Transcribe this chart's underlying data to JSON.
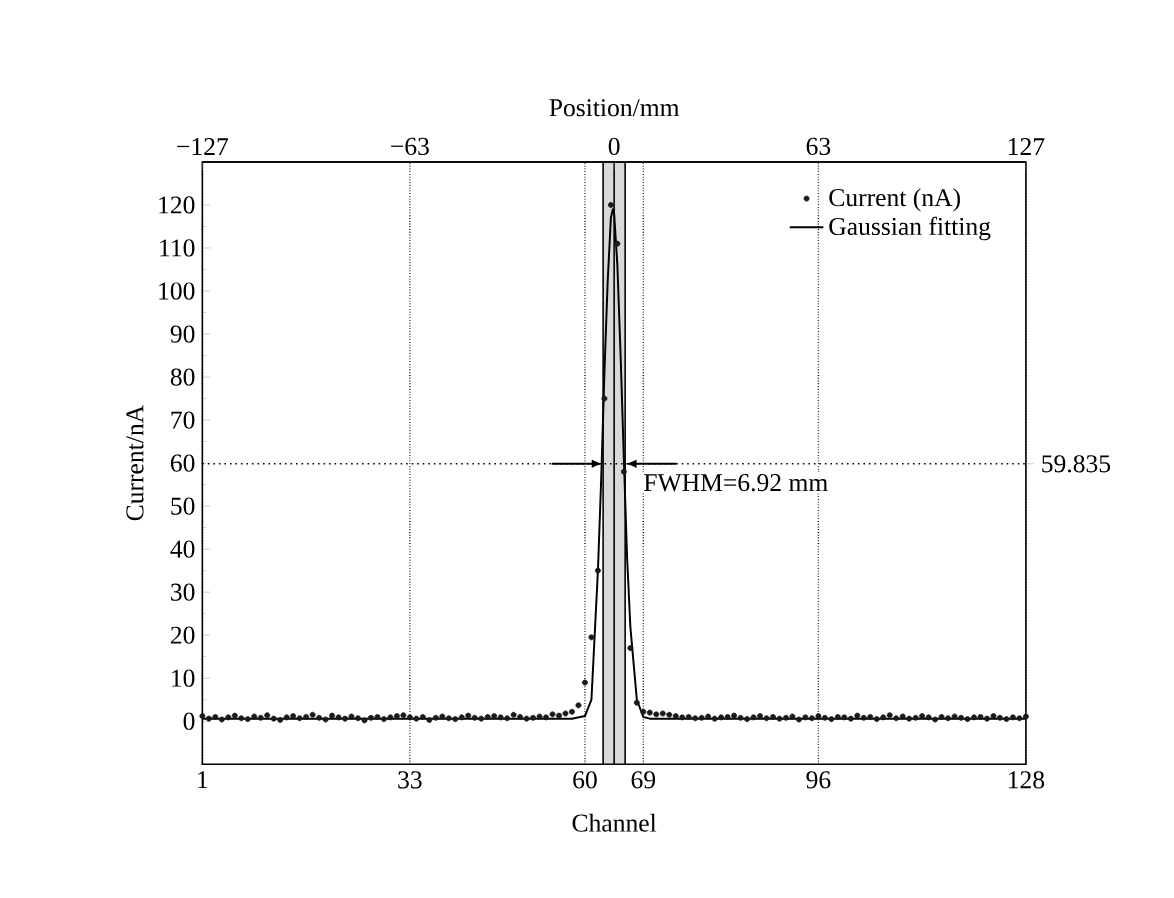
{
  "chart_data": {
    "type": "scatter",
    "xlabel": "Channel",
    "ylabel": "Current/nA",
    "x2label": "Position/mm",
    "x": [
      1,
      2,
      3,
      4,
      5,
      6,
      7,
      8,
      9,
      10,
      11,
      12,
      13,
      14,
      15,
      16,
      17,
      18,
      19,
      20,
      21,
      22,
      23,
      24,
      25,
      26,
      27,
      28,
      29,
      30,
      31,
      32,
      33,
      34,
      35,
      36,
      37,
      38,
      39,
      40,
      41,
      42,
      43,
      44,
      45,
      46,
      47,
      48,
      49,
      50,
      51,
      52,
      53,
      54,
      55,
      56,
      57,
      58,
      59,
      60,
      61,
      62,
      63,
      64,
      65,
      66,
      67,
      68,
      69,
      70,
      71,
      72,
      73,
      74,
      75,
      76,
      77,
      78,
      79,
      80,
      81,
      82,
      83,
      84,
      85,
      86,
      87,
      88,
      89,
      90,
      91,
      92,
      93,
      94,
      95,
      96,
      97,
      98,
      99,
      100,
      101,
      102,
      103,
      104,
      105,
      106,
      107,
      108,
      109,
      110,
      111,
      112,
      113,
      114,
      115,
      116,
      117,
      118,
      119,
      120,
      121,
      122,
      123,
      124,
      125,
      126,
      127,
      128
    ],
    "series": [
      {
        "name": "Current (nA)",
        "color": "#1a1a1a",
        "marker": "circle",
        "values": [
          1.2,
          0.6,
          1.0,
          0.4,
          0.9,
          1.3,
          0.7,
          0.5,
          1.1,
          0.8,
          1.4,
          0.6,
          0.3,
          0.9,
          1.2,
          0.7,
          1.0,
          1.5,
          0.8,
          0.4,
          1.3,
          0.9,
          0.6,
          1.1,
          0.7,
          0.2,
          0.8,
          1.0,
          0.5,
          0.9,
          1.2,
          1.4,
          0.9,
          0.6,
          1.0,
          0.3,
          0.8,
          1.1,
          0.7,
          0.5,
          0.9,
          1.3,
          0.8,
          0.6,
          1.0,
          1.2,
          0.9,
          0.7,
          1.5,
          1.0,
          0.6,
          0.8,
          1.1,
          0.9,
          1.6,
          1.3,
          1.8,
          2.2,
          3.7,
          9,
          19.5,
          35,
          75,
          120,
          111,
          58,
          17,
          4.3,
          2.2,
          2.0,
          1.6,
          1.8,
          1.5,
          1.2,
          0.9,
          1.0,
          0.7,
          0.8,
          1.1,
          0.6,
          0.9,
          1.0,
          1.3,
          0.8,
          0.5,
          0.9,
          1.2,
          0.7,
          1.0,
          0.6,
          0.8,
          1.1,
          0.4,
          0.9,
          0.7,
          1.2,
          0.8,
          0.5,
          1.0,
          0.9,
          0.6,
          1.3,
          0.8,
          1.0,
          0.5,
          0.9,
          1.4,
          0.7,
          1.1,
          0.6,
          0.8,
          1.2,
          0.9,
          0.4,
          1.0,
          0.7,
          1.1,
          0.8,
          0.5,
          0.9,
          1.0,
          0.6,
          1.2,
          0.8,
          0.5,
          0.9,
          0.7,
          1.1
        ]
      },
      {
        "name": "Gaussian fitting",
        "type": "line",
        "color": "#000000",
        "marker": "none",
        "line_style": "solid",
        "x": [
          1,
          58,
          60,
          61,
          62,
          62.5,
          63,
          63.5,
          64,
          64.3,
          64.5,
          65,
          65.5,
          66,
          66.5,
          67,
          68,
          69,
          70,
          128
        ],
        "values": [
          0.6,
          0.6,
          1.2,
          5,
          35,
          56,
          81,
          102,
          117,
          119,
          118,
          106,
          85,
          61,
          38,
          22,
          5,
          1,
          0.6,
          0.6
        ]
      }
    ],
    "xlim": [
      1,
      128
    ],
    "xticks": [
      1,
      33,
      60,
      69,
      96,
      128
    ],
    "x2lim": [
      -127,
      127
    ],
    "x2ticks": [
      {
        "value": -127,
        "label": "−127"
      },
      {
        "value": -63,
        "label": "−63"
      },
      0,
      63,
      127
    ],
    "ylim": [
      -10,
      130
    ],
    "yticks": [
      0,
      10,
      20,
      30,
      40,
      50,
      60,
      70,
      80,
      90,
      100,
      110,
      120
    ],
    "grid": "x",
    "legend": "top right",
    "ref_lines": [
      {
        "axis": "y",
        "value": 59.835,
        "label": "59.835",
        "line_style": "dotted"
      },
      {
        "axis": "x",
        "value": 64.5,
        "line_style": "solid"
      }
    ],
    "bands": [
      {
        "axis": "x",
        "from": 62.8,
        "to": 66.2,
        "color": "#d9d9d9"
      }
    ],
    "annotations": [
      "FWHM=6.92 mm"
    ]
  }
}
